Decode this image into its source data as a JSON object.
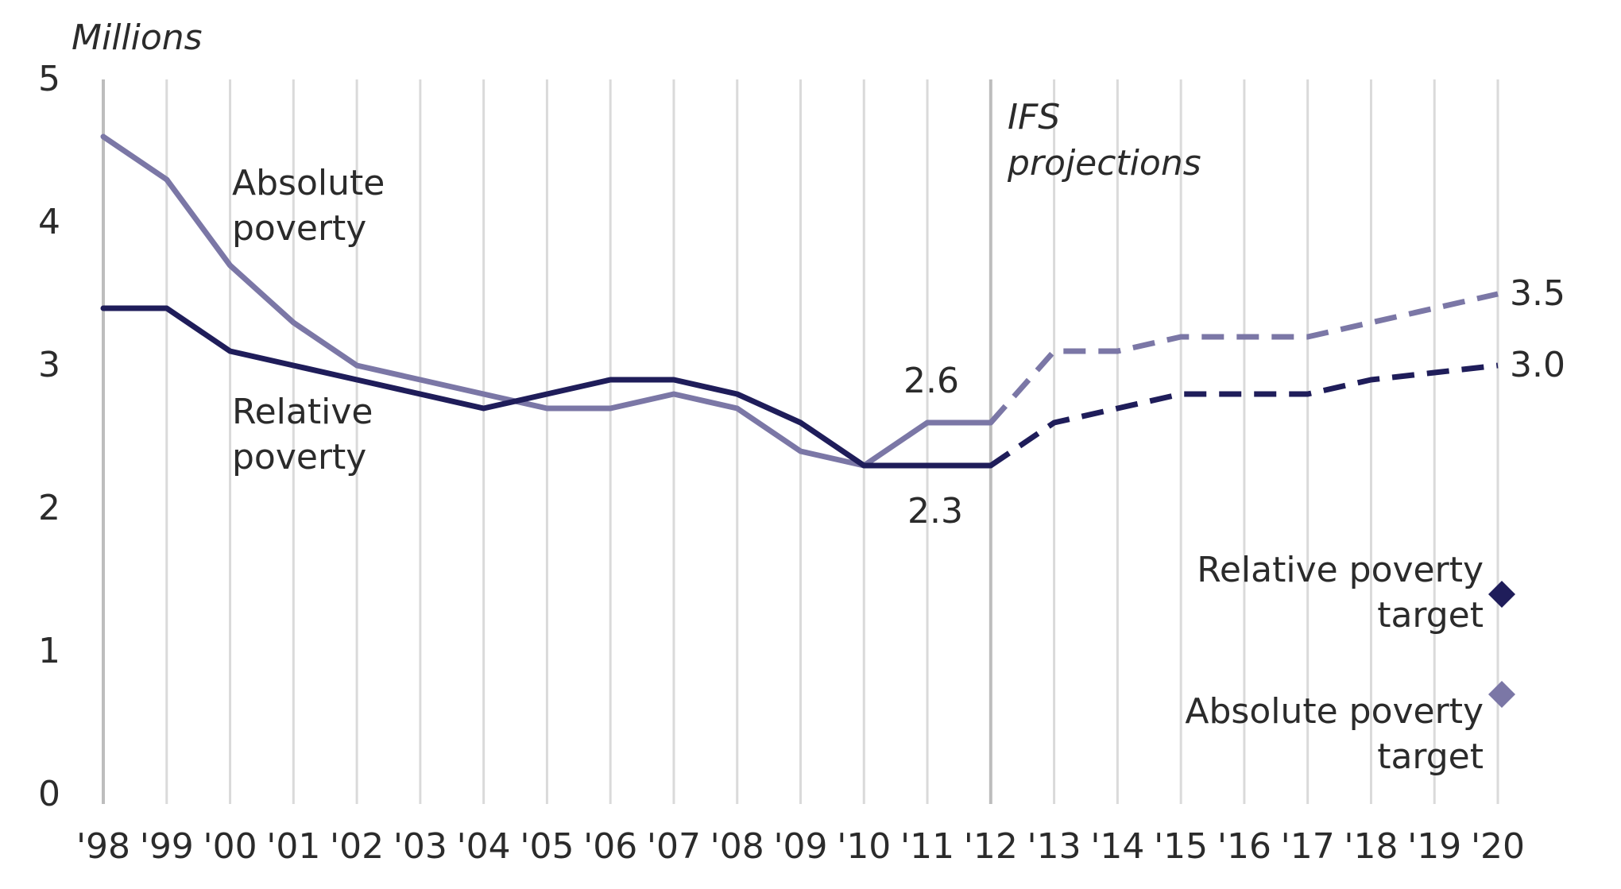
{
  "chart_data": {
    "type": "line",
    "ylabel": "Millions",
    "ylim": [
      0,
      5
    ],
    "yticks": [
      "0",
      "1",
      "2",
      "3",
      "4",
      "5"
    ],
    "categories": [
      "'98",
      "'99",
      "'00",
      "'01",
      "'02",
      "'03",
      "'04",
      "'05",
      "'06",
      "'07",
      "'08",
      "'09",
      "'10",
      "'11",
      "'12",
      "'13",
      "'14",
      "'15",
      "'16",
      "'17",
      "'18",
      "'19",
      "'20"
    ],
    "grid": "vertical",
    "projection_label": [
      "IFS",
      "projections"
    ],
    "colors": {
      "absolute": "#7b77a6",
      "relative": "#1f1d5a",
      "grid": "#dadada",
      "divider": "#bdbdbd"
    },
    "series": [
      {
        "key": "absolute",
        "label": [
          "Absolute",
          "poverty"
        ],
        "values": [
          4.6,
          4.3,
          3.7,
          3.3,
          3.0,
          2.9,
          2.8,
          2.7,
          2.7,
          2.8,
          2.7,
          2.4,
          2.3,
          2.6,
          2.6,
          3.1,
          3.1,
          3.2,
          3.2,
          3.2,
          3.3,
          3.4,
          3.5
        ],
        "projection_start_index": 14
      },
      {
        "key": "relative",
        "label": [
          "Relative",
          "poverty"
        ],
        "values": [
          3.4,
          3.4,
          3.1,
          3.0,
          2.9,
          2.8,
          2.7,
          2.8,
          2.9,
          2.9,
          2.8,
          2.6,
          2.3,
          2.3,
          2.3,
          2.6,
          2.7,
          2.8,
          2.8,
          2.8,
          2.9,
          2.95,
          3.0
        ],
        "projection_start_index": 14
      }
    ],
    "data_labels": [
      {
        "text": "2.6",
        "series": "absolute",
        "x": "'11",
        "y": 2.6
      },
      {
        "text": "2.3",
        "series": "relative",
        "x": "'11",
        "y": 2.3
      },
      {
        "text": "3.5",
        "series": "absolute",
        "x": "'20",
        "y": 3.5
      },
      {
        "text": "3.0",
        "series": "relative",
        "x": "'20",
        "y": 3.0
      }
    ],
    "targets": [
      {
        "key": "relative",
        "label": [
          "Relative poverty",
          "target"
        ],
        "x": "'20",
        "y": 1.4
      },
      {
        "key": "absolute",
        "label": [
          "Absolute poverty",
          "target"
        ],
        "x": "'20",
        "y": 0.7
      }
    ]
  }
}
